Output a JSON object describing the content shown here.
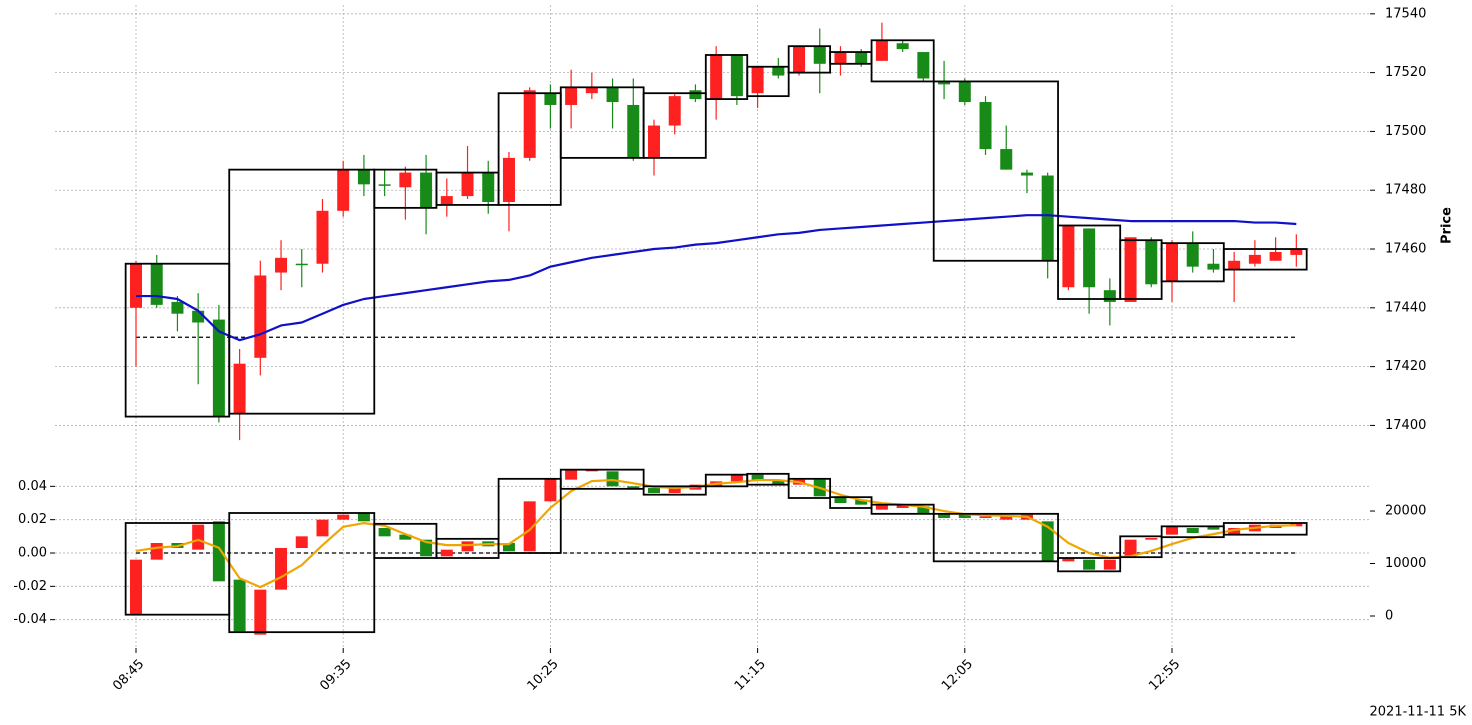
{
  "caption": "2021-11-11 5K",
  "chart_data": [
    {
      "type": "candlestick",
      "y_label": "Price",
      "yaxis_position": "right",
      "grid": true,
      "up_color": "#ff2020",
      "down_color": "#188a18",
      "box_color": "#000000",
      "ylim": [
        17393,
        17543
      ],
      "yticks": [
        17400,
        17420,
        17440,
        17460,
        17480,
        17500,
        17520,
        17540
      ],
      "open": [
        17440,
        17455,
        17442,
        17439,
        17436,
        17404,
        17423,
        17452,
        17455,
        17455,
        17473,
        17487,
        17482,
        17481,
        17486,
        17475,
        17478,
        17486,
        17476,
        17491,
        17513,
        17509,
        17513,
        17515,
        17509,
        17491,
        17502,
        17514,
        17511,
        17526,
        17513,
        17522,
        17520,
        17529,
        17523,
        17527,
        17524,
        17530,
        17527,
        17517,
        17517,
        17510,
        17494,
        17486,
        17485,
        17447,
        17467,
        17446,
        17442,
        17463,
        17449,
        17462,
        17455,
        17453,
        17455,
        17456,
        17458
      ],
      "high": [
        17456,
        17458,
        17444,
        17445,
        17441,
        17426,
        17456,
        17463,
        17460,
        17477,
        17490,
        17492,
        17487,
        17488,
        17492,
        17484,
        17495,
        17490,
        17493,
        17515,
        17516,
        17521,
        17520,
        17518,
        17518,
        17504,
        17513,
        17516,
        17529,
        17526,
        17522,
        17525,
        17529,
        17535,
        17529,
        17528,
        17537,
        17531,
        17527,
        17524,
        17518,
        17512,
        17502,
        17487,
        17486,
        17468,
        17467,
        17450,
        17464,
        17464,
        17463,
        17466,
        17460,
        17459,
        17463,
        17464,
        17465
      ],
      "low": [
        17420,
        17440,
        17432,
        17414,
        17401,
        17395,
        17417,
        17446,
        17447,
        17452,
        17471,
        17478,
        17478,
        17470,
        17465,
        17471,
        17477,
        17472,
        17466,
        17490,
        17501,
        17501,
        17511,
        17501,
        17490,
        17485,
        17499,
        17510,
        17504,
        17509,
        17508,
        17518,
        17519,
        17513,
        17519,
        17522,
        17524,
        17527,
        17517,
        17511,
        17509,
        17492,
        17487,
        17479,
        17450,
        17446,
        17438,
        17434,
        17442,
        17447,
        17442,
        17452,
        17452,
        17442,
        17454,
        17456,
        17454
      ],
      "close": [
        17455,
        17441,
        17438,
        17435,
        17403,
        17421,
        17451,
        17457,
        17455,
        17473,
        17487,
        17482,
        17482,
        17486,
        17474,
        17478,
        17486,
        17476,
        17491,
        17514,
        17509,
        17515,
        17515,
        17510,
        17491,
        17502,
        17512,
        17511,
        17526,
        17512,
        17522,
        17519,
        17529,
        17523,
        17527,
        17523,
        17531,
        17528,
        17518,
        17516,
        17510,
        17494,
        17487,
        17485,
        17456,
        17468,
        17447,
        17442,
        17464,
        17448,
        17462,
        17454,
        17453,
        17456,
        17458,
        17459,
        17460
      ],
      "lines": [
        {
          "color": "#1010c8",
          "values": [
            17444,
            17444,
            17443,
            17439,
            17432,
            17429,
            17431,
            17434,
            17435,
            17438,
            17441,
            17443,
            17444,
            17445,
            17446,
            17447,
            17448,
            17449,
            17449.5,
            17451,
            17454,
            17455.5,
            17457,
            17458,
            17459,
            17460,
            17460.5,
            17461.5,
            17462,
            17463,
            17464,
            17465,
            17465.5,
            17466.5,
            17467,
            17467.5,
            17468,
            17468.5,
            17469,
            17469.5,
            17470,
            17470.5,
            17471,
            17471.5,
            17471.5,
            17471,
            17470.5,
            17470,
            17469.5,
            17469.5,
            17469.5,
            17469.5,
            17469.5,
            17469.5,
            17469,
            17469,
            17468.5
          ]
        }
      ],
      "hline": 17430,
      "boxes": [
        {
          "x": [
            0,
            4
          ],
          "top": 17455,
          "bottom": 17403
        },
        {
          "x": [
            5,
            11
          ],
          "top": 17487,
          "bottom": 17404
        },
        {
          "x": [
            12,
            14
          ],
          "top": 17487,
          "bottom": 17474
        },
        {
          "x": [
            15,
            17
          ],
          "top": 17486,
          "bottom": 17475
        },
        {
          "x": [
            18,
            20
          ],
          "top": 17513,
          "bottom": 17475
        },
        {
          "x": [
            21,
            24
          ],
          "top": 17515,
          "bottom": 17491
        },
        {
          "x": [
            25,
            27
          ],
          "top": 17513,
          "bottom": 17491
        },
        {
          "x": [
            28,
            29
          ],
          "top": 17526,
          "bottom": 17511
        },
        {
          "x": [
            30,
            31
          ],
          "top": 17522,
          "bottom": 17512
        },
        {
          "x": [
            32,
            33
          ],
          "top": 17529,
          "bottom": 17520
        },
        {
          "x": [
            34,
            35
          ],
          "top": 17527,
          "bottom": 17523
        },
        {
          "x": [
            36,
            38
          ],
          "top": 17531,
          "bottom": 17517
        },
        {
          "x": [
            39,
            44
          ],
          "top": 17517,
          "bottom": 17456
        },
        {
          "x": [
            45,
            47
          ],
          "top": 17468,
          "bottom": 17443
        },
        {
          "x": [
            48,
            49
          ],
          "top": 17463,
          "bottom": 17443
        },
        {
          "x": [
            50,
            52
          ],
          "top": 17462,
          "bottom": 17449
        },
        {
          "x": [
            53,
            56
          ],
          "top": 17460,
          "bottom": 17453
        }
      ]
    },
    {
      "type": "candlestick",
      "yaxis_position": "left",
      "grid": true,
      "up_color": "#ff2020",
      "down_color": "#188a18",
      "box_color": "#000000",
      "categories": [
        "08:45",
        null,
        null,
        null,
        null,
        null,
        null,
        null,
        null,
        null,
        "09:35",
        null,
        null,
        null,
        null,
        null,
        null,
        null,
        null,
        null,
        "10:25",
        null,
        null,
        null,
        null,
        null,
        null,
        null,
        null,
        null,
        "11:15",
        null,
        null,
        null,
        null,
        null,
        null,
        null,
        null,
        null,
        "12:05",
        null,
        null,
        null,
        null,
        null,
        null,
        null,
        null,
        null,
        "12:55",
        null,
        null,
        null,
        null,
        null,
        null
      ],
      "ylim": [
        -0.057,
        0.051
      ],
      "yticks": [
        -0.04,
        -0.02,
        {
          "value": 0,
          "label": "0.00"
        },
        0.02,
        0.04
      ],
      "y2lim": [
        -6100,
        28200
      ],
      "y2ticks": [
        0,
        10000,
        20000
      ],
      "open": [
        -0.037,
        -0.004,
        0.006,
        0.002,
        0.019,
        -0.016,
        -0.049,
        -0.022,
        0.003,
        0.01,
        0.02,
        0.024,
        0.015,
        0.011,
        0.008,
        -0.002,
        0.001,
        0.007,
        0.006,
        0.001,
        0.031,
        0.044,
        0.049,
        0.049,
        0.04,
        0.039,
        0.036,
        0.038,
        0.04,
        0.043,
        0.047,
        0.044,
        0.041,
        0.044,
        0.034,
        0.032,
        0.026,
        0.027,
        0.028,
        0.024,
        0.023,
        0.021,
        0.02,
        0.02,
        0.019,
        -0.005,
        -0.004,
        -0.01,
        -0.002,
        0.008,
        0.011,
        0.015,
        0.016,
        0.011,
        0.013,
        0.015,
        0.016
      ],
      "close": [
        -0.004,
        0.006,
        0.003,
        0.017,
        -0.017,
        -0.047,
        -0.022,
        0.003,
        0.01,
        0.02,
        0.023,
        0.019,
        0.01,
        0.008,
        -0.002,
        0.002,
        0.007,
        0.004,
        0.001,
        0.031,
        0.045,
        0.05,
        0.05,
        0.04,
        0.038,
        0.036,
        0.039,
        0.041,
        0.043,
        0.047,
        0.044,
        0.041,
        0.044,
        0.034,
        0.03,
        0.029,
        0.029,
        0.029,
        0.024,
        0.021,
        0.021,
        0.022,
        0.022,
        0.023,
        -0.005,
        -0.003,
        -0.01,
        -0.004,
        0.008,
        0.009,
        0.016,
        0.012,
        0.014,
        0.015,
        0.017,
        0.017,
        0.018
      ],
      "lines": [
        {
          "color": "#f0a500",
          "axis": "y2",
          "values": [
            12400,
            13000,
            13300,
            14500,
            13000,
            7200,
            5500,
            7400,
            9700,
            13500,
            17000,
            17700,
            17200,
            15600,
            14100,
            13500,
            13500,
            13700,
            13700,
            16400,
            20600,
            23800,
            25700,
            25900,
            25300,
            24600,
            24400,
            24600,
            25200,
            25500,
            25900,
            25900,
            25500,
            24400,
            23100,
            22100,
            21500,
            21200,
            20800,
            20000,
            19400,
            19200,
            19100,
            18900,
            17000,
            13900,
            12000,
            11100,
            11400,
            12400,
            13700,
            14900,
            15600,
            16400,
            16800,
            17200,
            17300
          ]
        }
      ],
      "hline": 0,
      "boxes": [
        {
          "x": [
            0,
            4
          ],
          "top": 0.018,
          "bottom": -0.037
        },
        {
          "x": [
            5,
            11
          ],
          "top": 0.024,
          "bottom": -0.0475
        },
        {
          "x": [
            12,
            14
          ],
          "top": 0.0175,
          "bottom": -0.003
        },
        {
          "x": [
            15,
            17
          ],
          "top": 0.0085,
          "bottom": -0.003
        },
        {
          "x": [
            18,
            20
          ],
          "top": 0.0445,
          "bottom": 0
        },
        {
          "x": [
            21,
            24
          ],
          "top": 0.05,
          "bottom": 0.0385
        },
        {
          "x": [
            25,
            27
          ],
          "top": 0.04,
          "bottom": 0.035
        },
        {
          "x": [
            28,
            29
          ],
          "top": 0.047,
          "bottom": 0.04
        },
        {
          "x": [
            30,
            31
          ],
          "top": 0.0475,
          "bottom": 0.041
        },
        {
          "x": [
            32,
            33
          ],
          "top": 0.0445,
          "bottom": 0.033
        },
        {
          "x": [
            34,
            35
          ],
          "top": 0.0335,
          "bottom": 0.027
        },
        {
          "x": [
            36,
            38
          ],
          "top": 0.029,
          "bottom": 0.0235
        },
        {
          "x": [
            39,
            44
          ],
          "top": 0.0235,
          "bottom": -0.005
        },
        {
          "x": [
            45,
            47
          ],
          "top": -0.003,
          "bottom": -0.011
        },
        {
          "x": [
            48,
            49
          ],
          "top": 0.01,
          "bottom": -0.0025
        },
        {
          "x": [
            50,
            52
          ],
          "top": 0.016,
          "bottom": 0.0095
        },
        {
          "x": [
            53,
            56
          ],
          "top": 0.018,
          "bottom": 0.011
        }
      ]
    }
  ]
}
